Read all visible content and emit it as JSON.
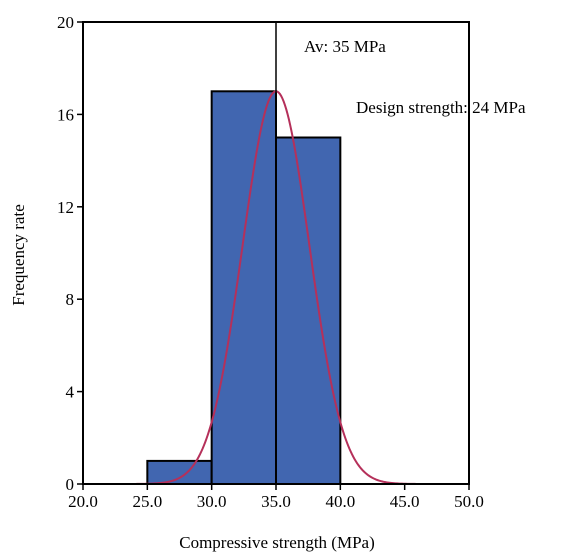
{
  "chart_data": {
    "type": "bar",
    "subtype": "histogram with fitted normal curve",
    "title": "",
    "xlabel": "Compressive strength (MPa)",
    "ylabel": "Frequency rate",
    "xlim": [
      20.0,
      50.0
    ],
    "ylim": [
      0,
      20
    ],
    "xticks": [
      "20.0",
      "25.0",
      "30.0",
      "35.0",
      "40.0",
      "45.0",
      "50.0"
    ],
    "yticks": [
      "0",
      "4",
      "8",
      "12",
      "16",
      "20"
    ],
    "bins": [
      {
        "x0": 25.0,
        "x1": 30.0,
        "value": 1
      },
      {
        "x0": 30.0,
        "x1": 35.0,
        "value": 17
      },
      {
        "x0": 35.0,
        "x1": 40.0,
        "value": 15
      }
    ],
    "curve": {
      "type": "normal",
      "mean": 35,
      "sd": 2.6,
      "peak": 17
    },
    "reference_line": {
      "x": 35
    },
    "grid": false,
    "legend": "none",
    "colors": {
      "bar": "#4166b0",
      "bar_edge": "#000000",
      "curve": "#b5305a",
      "axis": "#000000"
    },
    "annotations": [
      {
        "text": "Av: 35 MPa"
      },
      {
        "text": "Design strength: 24 MPa"
      }
    ]
  }
}
